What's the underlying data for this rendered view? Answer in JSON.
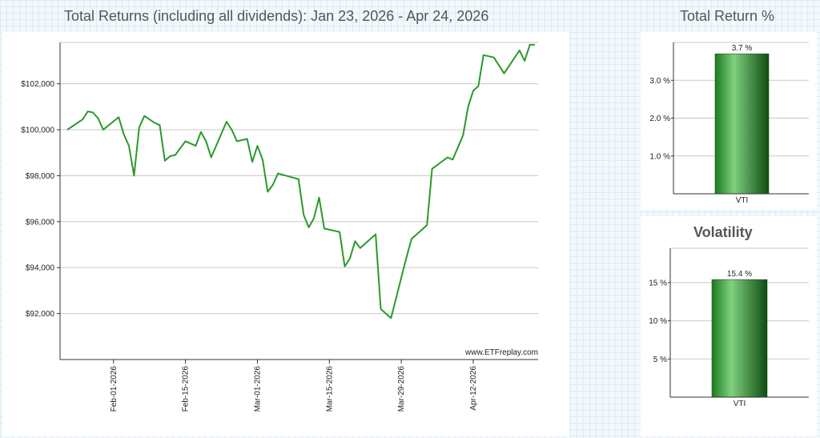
{
  "titles": {
    "main": "Total Returns (including all dividends): Jan 23, 2026 - Apr 24, 2026",
    "total_return": "Total Return %",
    "volatility": "Volatility"
  },
  "watermark": "www.ETFreplay.com",
  "colors": {
    "line": "#2a9a2a",
    "bar_dark": "#0f5f12",
    "bar_light": "#7fd07f"
  },
  "chart_data": [
    {
      "type": "line",
      "title": "Total Returns (including all dividends): Jan 23, 2026 - Apr 24, 2026",
      "xlabel": "",
      "ylabel": "",
      "ylim": [
        90000,
        103800
      ],
      "yticks": [
        92000,
        94000,
        96000,
        98000,
        100000,
        102000
      ],
      "ytick_labels": [
        "$92,000",
        "$94,000",
        "$96,000",
        "$98,000",
        "$100,000",
        "$102,000"
      ],
      "xticks": [
        {
          "label": "Feb-01-2026",
          "day": 9
        },
        {
          "label": "Feb-15-2026",
          "day": 23
        },
        {
          "label": "Mar-01-2026",
          "day": 37
        },
        {
          "label": "Mar-15-2026",
          "day": 51
        },
        {
          "label": "Mar-29-2026",
          "day": 65
        },
        {
          "label": "Apr-12-2026",
          "day": 79
        }
      ],
      "xlim_days": [
        0,
        91
      ],
      "series": [
        {
          "name": "VTI",
          "days": [
            0,
            3,
            4,
            5,
            6,
            7,
            10,
            11,
            12,
            13,
            14,
            15,
            17,
            18,
            19,
            20,
            21,
            23,
            25,
            26,
            27,
            28,
            31,
            32,
            33,
            34,
            35,
            36,
            37,
            38,
            39,
            40,
            41,
            45,
            46,
            47,
            48,
            49,
            50,
            53,
            54,
            55,
            56,
            57,
            60,
            61,
            62,
            63,
            66,
            67,
            68,
            70,
            71,
            74,
            75,
            77,
            78,
            79,
            80,
            81,
            83,
            85,
            88,
            89,
            90,
            91
          ],
          "values": [
            100000,
            100450,
            100800,
            100750,
            100500,
            100000,
            100550,
            99800,
            99300,
            98000,
            100100,
            100600,
            100300,
            100200,
            98650,
            98850,
            98900,
            99500,
            99300,
            99900,
            99500,
            98800,
            100350,
            100000,
            99500,
            99550,
            99600,
            98600,
            99300,
            98700,
            97300,
            97600,
            98100,
            97850,
            96300,
            95750,
            96150,
            97050,
            95700,
            95550,
            94050,
            94400,
            95150,
            94850,
            95450,
            92200,
            92000,
            91800,
            94450,
            95250,
            95450,
            95850,
            98300,
            98800,
            98700,
            99750,
            101000,
            101700,
            101900,
            103250,
            103150,
            102450,
            103450,
            103000,
            103700,
            103700
          ]
        }
      ]
    },
    {
      "type": "bar",
      "title": "Total Return %",
      "categories": [
        "VTI"
      ],
      "values": [
        3.7
      ],
      "value_labels": [
        "3.7 %"
      ],
      "ylim": [
        0,
        4.0
      ],
      "yticks": [
        1.0,
        2.0,
        3.0
      ],
      "ytick_labels": [
        "1.0 %",
        "2.0 %",
        "3.0 %"
      ]
    },
    {
      "type": "bar",
      "title": "Volatility",
      "categories": [
        "VTI"
      ],
      "values": [
        15.4
      ],
      "value_labels": [
        "15.4 %"
      ],
      "ylim": [
        0,
        19.5
      ],
      "yticks": [
        5,
        10,
        15
      ],
      "ytick_labels": [
        "5 %",
        "10 %",
        "15 %"
      ]
    }
  ]
}
